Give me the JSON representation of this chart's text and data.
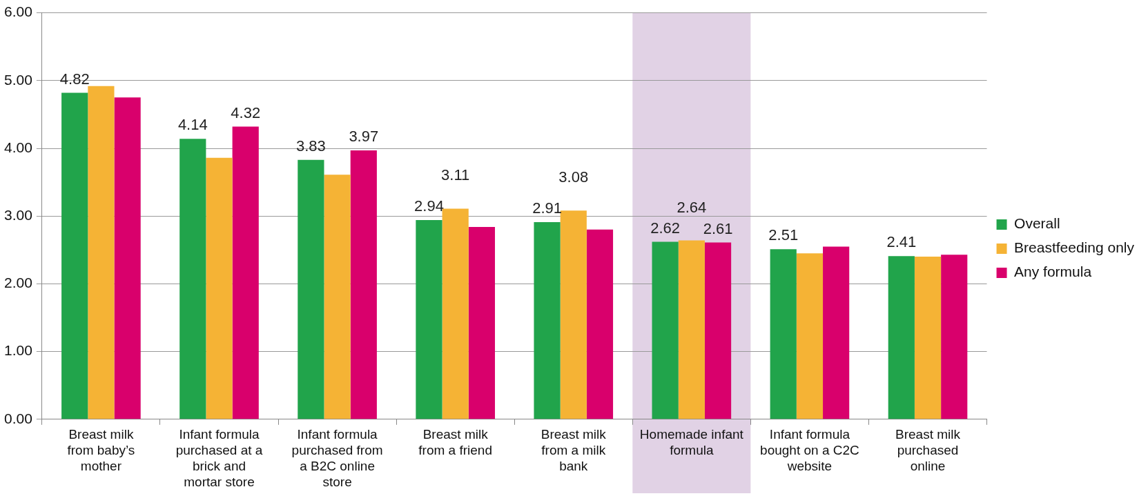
{
  "chart_data": {
    "type": "bar",
    "categories": [
      "Breast milk from baby’s mother",
      "Infant formula purchased at a brick and mortar store",
      "Infant formula purchased from a B2C online store",
      "Breast milk from a friend",
      "Breast milk from a milk bank",
      "Homemade infant formula",
      "Infant formula bought on a C2C website",
      "Breast milk purchased online"
    ],
    "series": [
      {
        "name": "Overall",
        "color": "#21a44b",
        "values": [
          4.82,
          4.14,
          3.83,
          2.94,
          2.91,
          2.62,
          2.51,
          2.41
        ],
        "value_labels": [
          "4.82",
          "4.14",
          "3.83",
          "2.94",
          "2.91",
          "2.62",
          "2.51",
          "2.41"
        ]
      },
      {
        "name": "Breastfeeding only",
        "color": "#f5b335",
        "values": [
          4.92,
          3.86,
          3.61,
          3.11,
          3.08,
          2.64,
          2.45,
          2.4
        ],
        "value_labels": [
          null,
          null,
          null,
          "3.11",
          "3.08",
          "2.64",
          null,
          null
        ]
      },
      {
        "name": "Any formula",
        "color": "#d9006c",
        "values": [
          4.75,
          4.32,
          3.97,
          2.84,
          2.8,
          2.61,
          2.55,
          2.43
        ],
        "value_labels": [
          null,
          "4.32",
          "3.97",
          null,
          null,
          "2.61",
          null,
          null
        ]
      }
    ],
    "ylim": [
      0,
      6
    ],
    "yticks": [
      {
        "value": 0,
        "label": "0.00"
      },
      {
        "value": 1,
        "label": "1.00"
      },
      {
        "value": 2,
        "label": "2.00"
      },
      {
        "value": 3,
        "label": "3.00"
      },
      {
        "value": 4,
        "label": "4.00"
      },
      {
        "value": 5,
        "label": "5.00"
      },
      {
        "value": 6,
        "label": "6.00"
      }
    ],
    "grid": "y",
    "legend": "right",
    "bands": [
      {
        "axis": "x",
        "from": "Homemade infant formula",
        "to": "Homemade infant formula",
        "color": "#e1d2e5"
      }
    ]
  }
}
